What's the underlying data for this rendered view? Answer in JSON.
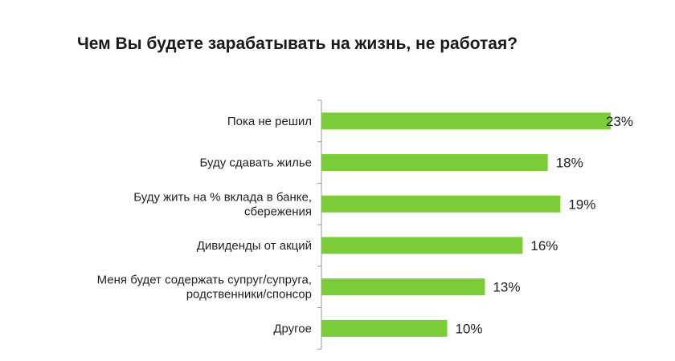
{
  "chart_data": {
    "type": "bar",
    "orientation": "horizontal",
    "title": "Чем Вы будете зарабатывать на жизнь, не работая?",
    "categories": [
      [
        "Пока не решил"
      ],
      [
        "Буду сдавать жилье"
      ],
      [
        "Буду жить на % вклада в банке,",
        "сбережения"
      ],
      [
        "Дивиденды от акций"
      ],
      [
        "Меня будет содержать супруг/супруга,",
        "родственники/спонсор"
      ],
      [
        "Другое"
      ]
    ],
    "values": [
      23,
      18,
      19,
      16,
      13,
      10
    ],
    "value_labels": [
      "23%",
      "18%",
      "19%",
      "16%",
      "13%",
      "10%"
    ],
    "xlabel": "",
    "ylabel": "",
    "xlim": [
      0,
      23
    ],
    "grid": false,
    "bar_color": "#7ccc3a"
  }
}
